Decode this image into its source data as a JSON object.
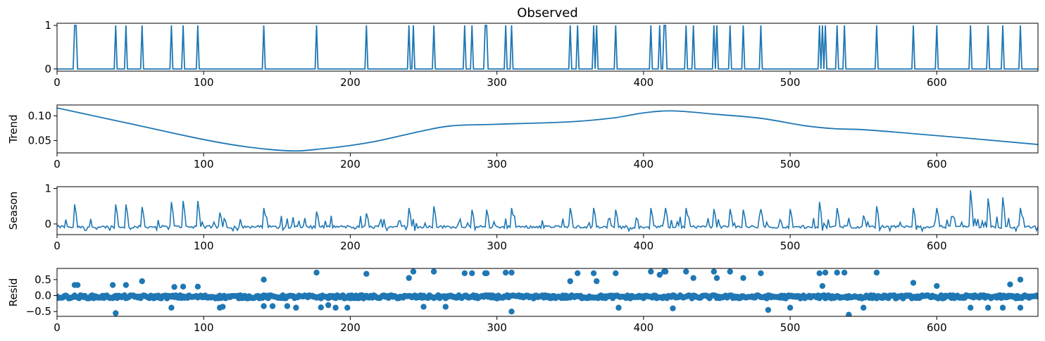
{
  "chart_data": [
    {
      "type": "line",
      "title": "Observed",
      "ylabel": "",
      "xlim": [
        0,
        669
      ],
      "ylim": [
        -0.05,
        1.05
      ],
      "xticks": [
        0,
        100,
        200,
        300,
        400,
        500,
        600
      ],
      "yticks": [
        0,
        1
      ],
      "color": "#1f77b4",
      "spike_positions": [
        12,
        13,
        40,
        47,
        58,
        78,
        86,
        96,
        141,
        177,
        211,
        240,
        243,
        257,
        278,
        283,
        292,
        293,
        306,
        310,
        350,
        355,
        366,
        368,
        381,
        405,
        411,
        414,
        415,
        429,
        434,
        448,
        450,
        459,
        468,
        480,
        520,
        522,
        524,
        532,
        537,
        559,
        584,
        600,
        623,
        635,
        645,
        657
      ]
    },
    {
      "type": "line",
      "title": "",
      "ylabel": "Trend",
      "xlim": [
        0,
        669
      ],
      "ylim": [
        0.025,
        0.122
      ],
      "xticks": [
        0,
        100,
        200,
        300,
        400,
        500,
        600
      ],
      "yticks": [
        0.05,
        0.1
      ],
      "ytick_labels": [
        "0.05",
        "0.10"
      ],
      "color": "#1f77b4",
      "x": [
        0,
        50,
        100,
        130,
        160,
        180,
        200,
        220,
        250,
        270,
        300,
        350,
        380,
        400,
        420,
        450,
        480,
        510,
        530,
        550,
        580,
        620,
        669
      ],
      "y": [
        0.116,
        0.084,
        0.052,
        0.037,
        0.029,
        0.033,
        0.04,
        0.05,
        0.07,
        0.08,
        0.083,
        0.088,
        0.096,
        0.106,
        0.11,
        0.103,
        0.095,
        0.08,
        0.074,
        0.072,
        0.065,
        0.055,
        0.042
      ]
    },
    {
      "type": "line",
      "title": "",
      "ylabel": "Season",
      "xlim": [
        0,
        669
      ],
      "ylim": [
        -0.3,
        1.05
      ],
      "xticks": [
        0,
        100,
        200,
        300,
        400,
        500,
        600
      ],
      "yticks": [
        0,
        1
      ],
      "color": "#1f77b4",
      "peaks": [
        [
          12,
          0.55
        ],
        [
          40,
          0.55
        ],
        [
          47,
          0.55
        ],
        [
          58,
          0.48
        ],
        [
          78,
          0.62
        ],
        [
          86,
          0.65
        ],
        [
          96,
          0.65
        ],
        [
          111,
          0.32
        ],
        [
          141,
          0.45
        ],
        [
          177,
          0.35
        ],
        [
          211,
          0.3
        ],
        [
          240,
          0.45
        ],
        [
          257,
          0.5
        ],
        [
          283,
          0.4
        ],
        [
          293,
          0.4
        ],
        [
          310,
          0.45
        ],
        [
          350,
          0.45
        ],
        [
          366,
          0.45
        ],
        [
          381,
          0.4
        ],
        [
          405,
          0.45
        ],
        [
          415,
          0.45
        ],
        [
          429,
          0.45
        ],
        [
          448,
          0.42
        ],
        [
          459,
          0.42
        ],
        [
          468,
          0.4
        ],
        [
          480,
          0.42
        ],
        [
          500,
          0.42
        ],
        [
          520,
          0.62
        ],
        [
          532,
          0.45
        ],
        [
          559,
          0.5
        ],
        [
          584,
          0.45
        ],
        [
          600,
          0.45
        ],
        [
          623,
          0.95
        ],
        [
          635,
          0.72
        ],
        [
          645,
          0.75
        ],
        [
          657,
          0.45
        ]
      ]
    },
    {
      "type": "scatter",
      "title": "",
      "ylabel": "Resid",
      "xlim": [
        0,
        669
      ],
      "ylim": [
        -0.65,
        0.85
      ],
      "xticks": [
        0,
        100,
        200,
        300,
        400,
        500,
        600
      ],
      "yticks": [
        -0.5,
        0,
        0.5
      ],
      "ytick_labels": [
        "−0.5",
        "0.0",
        "0.5"
      ],
      "color": "#1f77b4",
      "outliers": [
        [
          12,
          0.33
        ],
        [
          14,
          0.33
        ],
        [
          38,
          0.33
        ],
        [
          40,
          -0.55
        ],
        [
          47,
          0.33
        ],
        [
          58,
          0.45
        ],
        [
          78,
          -0.38
        ],
        [
          80,
          0.27
        ],
        [
          86,
          0.28
        ],
        [
          96,
          0.28
        ],
        [
          111,
          -0.38
        ],
        [
          113,
          -0.35
        ],
        [
          141,
          0.5
        ],
        [
          141,
          -0.33
        ],
        [
          147,
          -0.33
        ],
        [
          157,
          -0.33
        ],
        [
          163,
          -0.38
        ],
        [
          177,
          0.72
        ],
        [
          180,
          -0.37
        ],
        [
          185,
          -0.3
        ],
        [
          190,
          -0.38
        ],
        [
          198,
          -0.38
        ],
        [
          211,
          0.68
        ],
        [
          240,
          0.55
        ],
        [
          243,
          0.75
        ],
        [
          250,
          -0.35
        ],
        [
          257,
          0.75
        ],
        [
          265,
          -0.35
        ],
        [
          278,
          0.7
        ],
        [
          283,
          0.7
        ],
        [
          292,
          0.7
        ],
        [
          293,
          0.7
        ],
        [
          306,
          0.72
        ],
        [
          310,
          0.72
        ],
        [
          310,
          -0.5
        ],
        [
          350,
          0.45
        ],
        [
          355,
          0.7
        ],
        [
          366,
          0.7
        ],
        [
          368,
          0.45
        ],
        [
          381,
          0.7
        ],
        [
          383,
          -0.38
        ],
        [
          405,
          0.75
        ],
        [
          411,
          0.65
        ],
        [
          414,
          0.75
        ],
        [
          415,
          0.75
        ],
        [
          420,
          -0.4
        ],
        [
          429,
          0.75
        ],
        [
          434,
          0.55
        ],
        [
          448,
          0.75
        ],
        [
          450,
          0.55
        ],
        [
          459,
          0.75
        ],
        [
          468,
          0.55
        ],
        [
          480,
          0.7
        ],
        [
          485,
          -0.45
        ],
        [
          500,
          -0.38
        ],
        [
          520,
          0.7
        ],
        [
          522,
          0.3
        ],
        [
          524,
          0.72
        ],
        [
          532,
          0.72
        ],
        [
          537,
          0.72
        ],
        [
          540,
          -0.6
        ],
        [
          550,
          -0.38
        ],
        [
          559,
          0.72
        ],
        [
          584,
          0.4
        ],
        [
          600,
          0.3
        ],
        [
          623,
          -0.38
        ],
        [
          635,
          -0.38
        ],
        [
          645,
          -0.38
        ],
        [
          650,
          0.35
        ],
        [
          657,
          0.5
        ],
        [
          657,
          -0.38
        ]
      ]
    }
  ]
}
